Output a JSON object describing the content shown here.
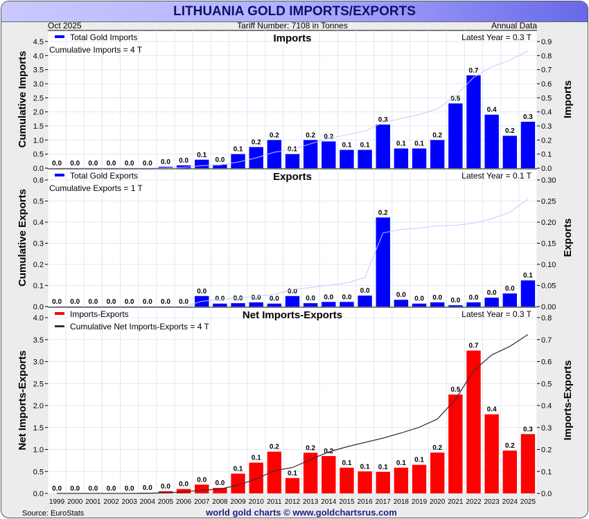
{
  "title": "LITHUANIA GOLD IMPORTS/EXPORTS",
  "date": "Oct  2025",
  "tariff": "Tariff Number: 7108 in Tonnes",
  "frequency": "Annual Data",
  "source": "Source: EuroStats",
  "footer": "world gold charts © www.goldchartsrus.com",
  "chart_data": [
    {
      "type": "bar",
      "title": "Imports",
      "legend": "Total Gold Imports",
      "cumulative_label": "Cumulative Imports = 4 T",
      "latest": "Latest Year = 0.3 T",
      "ylabel_left": "Cumulative Imports",
      "ylabel_right": "Imports",
      "bar_color": "#0000ff",
      "line_color": "#c8c8ff",
      "ylim_left": [
        0,
        4.5
      ],
      "ylim_right": [
        0,
        0.9
      ],
      "values": [
        0,
        0,
        0,
        0,
        0,
        0,
        0.01,
        0.02,
        0.06,
        0.025,
        0.1,
        0.15,
        0.2,
        0.1,
        0.2,
        0.19,
        0.13,
        0.13,
        0.31,
        0.14,
        0.14,
        0.2,
        0.46,
        0.66,
        0.38,
        0.23,
        0.33
      ],
      "labels": [
        "0.0",
        "0.0",
        "0.0",
        "0.0",
        "0.0",
        "0.0",
        "0.0",
        "0.0",
        "0.1",
        "0.0",
        "0.1",
        "0.2",
        "0.2",
        "0.1",
        "0.2",
        "0.2",
        "0.1",
        "0.1",
        "0.3",
        "0.1",
        "0.1",
        "0.2",
        "0.5",
        "0.7",
        "0.4",
        "0.2",
        "0.3"
      ]
    },
    {
      "type": "bar",
      "title": "Exports",
      "legend": "Total Gold Exports",
      "cumulative_label": "Cumulative Exports = 1 T",
      "latest": "Latest Year = 0.1 T",
      "ylabel_left": "Cumulative Exports",
      "ylabel_right": "Exports",
      "bar_color": "#0000ff",
      "line_color": "#c8c8ff",
      "ylim_left": [
        0,
        0.6
      ],
      "ylim_right": [
        0,
        0.3
      ],
      "values": [
        0,
        0,
        0,
        0,
        0,
        0,
        0,
        0,
        0.025,
        0.007,
        0.008,
        0.01,
        0.007,
        0.025,
        0.008,
        0.011,
        0.011,
        0.026,
        0.211,
        0.016,
        0.007,
        0.01,
        0.003,
        0.01,
        0.021,
        0.031,
        0.062
      ],
      "labels": [
        "0.0",
        "0.0",
        "0.0",
        "0.0",
        "0.0",
        "0.0",
        "0.0",
        "0.0",
        "0.0",
        "0.0",
        "0.0",
        "0.0",
        "0.0",
        "0.0",
        "0.0",
        "0.0",
        "0.0",
        "0.0",
        "0.2",
        "0.0",
        "0.0",
        "0.0",
        "0.0",
        "0.0",
        "0.0",
        "0.0",
        "0.1"
      ]
    },
    {
      "type": "bar",
      "title": "Net Imports-Exports",
      "legend": "Imports-Exports",
      "legend2": "Cumulative Net Imports-Exports = 4 T",
      "latest": "Latest Year = 0.3 T",
      "ylabel_left": "Net Imports-Exports",
      "ylabel_right": "Imports-Exports",
      "bar_color": "#ff0000",
      "line_color": "#333333",
      "ylim_left": [
        0,
        4.0
      ],
      "ylim_right": [
        0,
        0.8
      ],
      "values": [
        0,
        0,
        0,
        0,
        0,
        0.003,
        0.01,
        0.02,
        0.04,
        0.025,
        0.09,
        0.14,
        0.19,
        0.07,
        0.185,
        0.17,
        0.117,
        0.1,
        0.098,
        0.117,
        0.13,
        0.186,
        0.45,
        0.65,
        0.36,
        0.195,
        0.27
      ],
      "labels": [
        "0.0",
        "0.0",
        "0.0",
        "0.0",
        "0.0",
        "0.0",
        "0.0",
        "0.0",
        "0.0",
        "0.0",
        "0.1",
        "0.1",
        "0.2",
        "0.1",
        "0.2",
        "0.2",
        "0.1",
        "0.1",
        "0.1",
        "0.1",
        "0.1",
        "0.2",
        "0.5",
        "0.7",
        "0.4",
        "0.2",
        "0.3"
      ]
    }
  ],
  "years": [
    "1999",
    "2000",
    "2001",
    "2002",
    "2003",
    "2004",
    "2005",
    "2006",
    "2007",
    "2008",
    "2009",
    "2010",
    "2011",
    "2012",
    "2013",
    "2014",
    "2015",
    "2016",
    "2017",
    "2018",
    "2019",
    "2020",
    "2021",
    "2022",
    "2023",
    "2024",
    "2025"
  ]
}
